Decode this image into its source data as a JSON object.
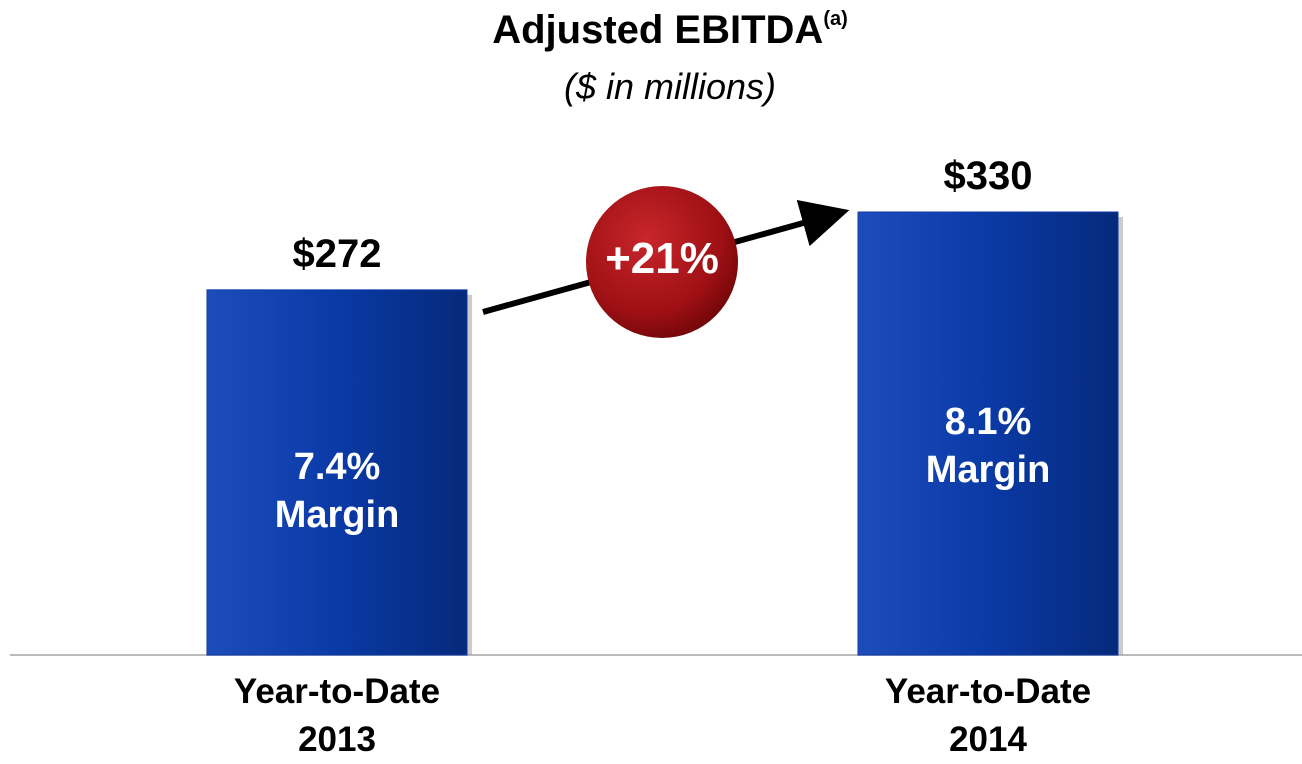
{
  "chart_data": {
    "type": "bar",
    "title": "Adjusted EBITDA",
    "title_superscript": "(a)",
    "subtitle": "($ in millions)",
    "categories": [
      "Year-to-Date 2013",
      "Year-to-Date 2014"
    ],
    "values": [
      272,
      330
    ],
    "value_labels": [
      "$272",
      "$330"
    ],
    "bar_annotations": [
      "7.4% Margin",
      "8.1% Margin"
    ],
    "annotation": "+21%",
    "color": "#0a3aa6"
  }
}
